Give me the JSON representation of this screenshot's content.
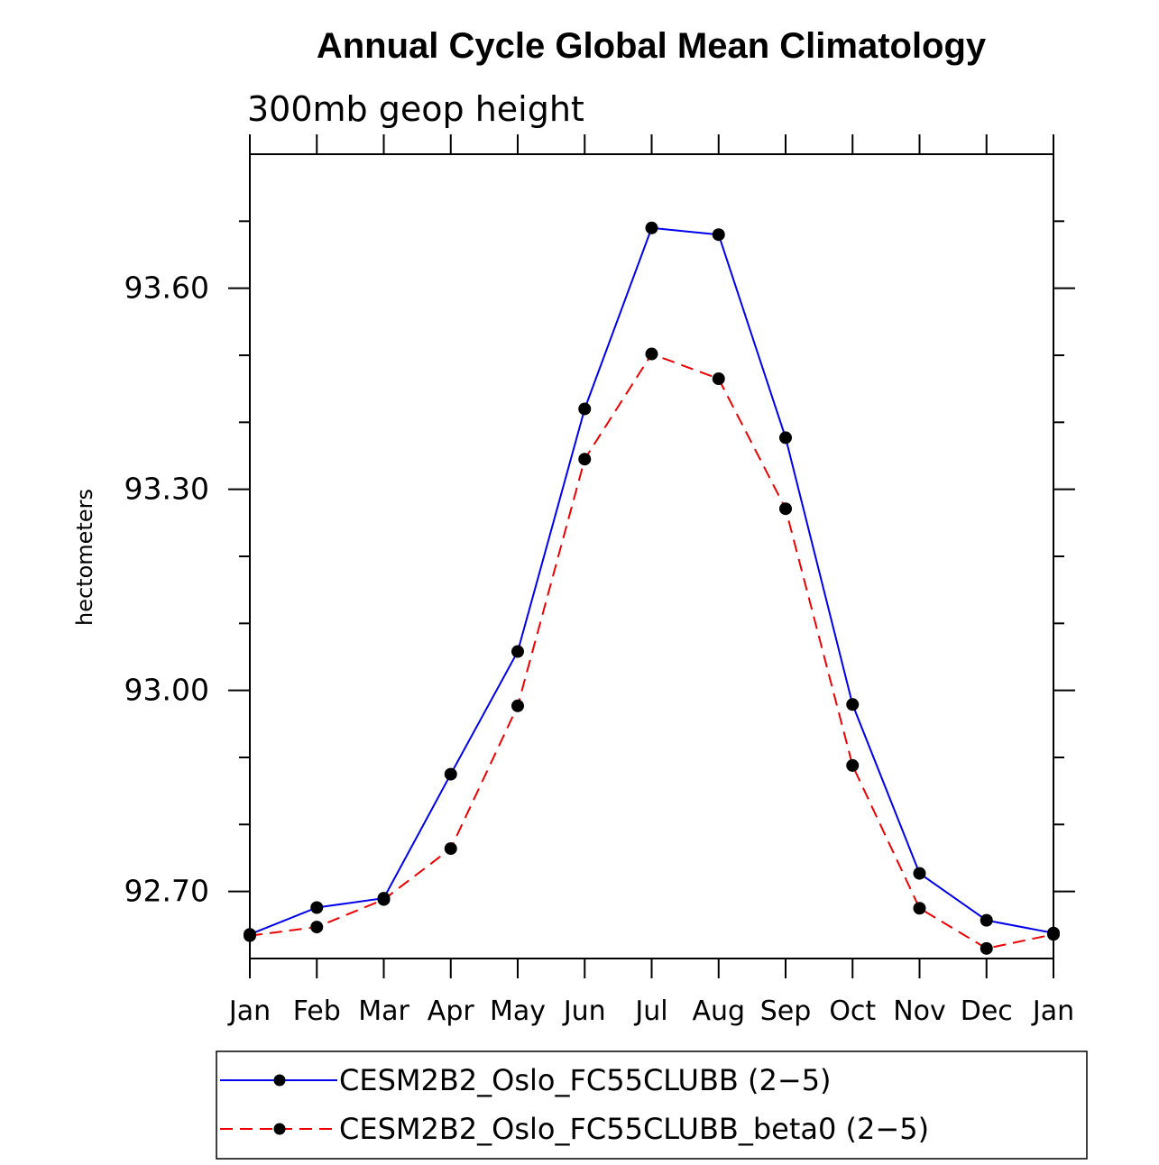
{
  "chart_data": {
    "type": "line",
    "title": "Annual Cycle Global Mean Climatology",
    "subtitle": "300mb geop height",
    "xlabel": "",
    "ylabel": "hectometers",
    "categories": [
      "Jan",
      "Feb",
      "Mar",
      "Apr",
      "May",
      "Jun",
      "Jul",
      "Aug",
      "Sep",
      "Oct",
      "Nov",
      "Dec",
      "Jan"
    ],
    "ylim": [
      92.6,
      93.8
    ],
    "yticks": [
      92.7,
      93.0,
      93.3,
      93.6
    ],
    "ytick_labels": [
      "92.70",
      "93.00",
      "93.30",
      "93.60"
    ],
    "series": [
      {
        "name": "CESM2B2_Oslo_FC55CLUBB (2−5)",
        "color": "#0000ee",
        "dash": "solid",
        "values": [
          92.636,
          92.676,
          92.69,
          92.875,
          93.058,
          93.42,
          93.69,
          93.68,
          93.377,
          92.979,
          92.727,
          92.657,
          92.638
        ]
      },
      {
        "name": "CESM2B2_Oslo_FC55CLUBB_beta0 (2−5)",
        "color": "#ee0000",
        "dash": "dashed",
        "values": [
          92.634,
          92.647,
          92.688,
          92.764,
          92.977,
          93.345,
          93.502,
          93.465,
          93.271,
          92.888,
          92.675,
          92.615,
          92.636
        ]
      }
    ],
    "legend_position": "bottom"
  }
}
